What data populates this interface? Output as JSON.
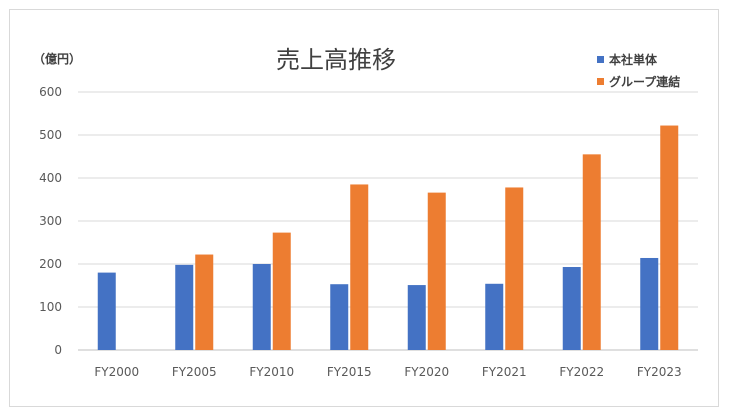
{
  "chart_data": {
    "type": "bar",
    "title": "売上高推移",
    "unit_label": "（億円）",
    "categories": [
      "FY2000",
      "FY2005",
      "FY2010",
      "FY2015",
      "FY2020",
      "FY2021",
      "FY2022",
      "FY2023"
    ],
    "series": [
      {
        "name": "本社単体",
        "color": "#4472c4",
        "values": [
          180,
          198,
          200,
          153,
          151,
          154,
          193,
          214
        ]
      },
      {
        "name": "グループ連結",
        "color": "#ed7d31",
        "values": [
          null,
          222,
          273,
          385,
          366,
          378,
          455,
          522
        ]
      }
    ],
    "ylim": [
      0,
      600
    ],
    "yticks": [
      0,
      100,
      200,
      300,
      400,
      500,
      600
    ],
    "grid": true,
    "legend_position": "top-right"
  }
}
